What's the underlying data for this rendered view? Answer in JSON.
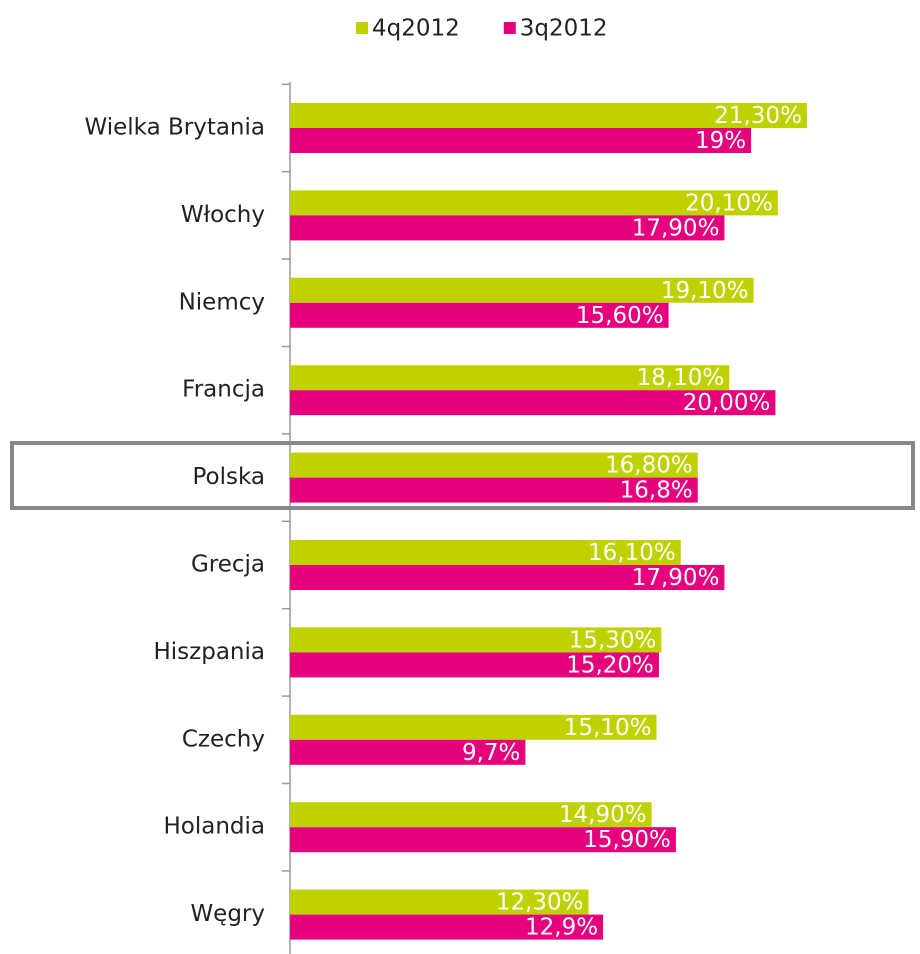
{
  "chart_data": {
    "type": "hbar",
    "categories": [
      "Wielka Brytania",
      "Włochy",
      "Niemcy",
      "Francja",
      "Polska",
      "Grecja",
      "Hiszpania",
      "Czechy",
      "Holandia",
      "Węgry"
    ],
    "series": [
      {
        "name": "4q2012",
        "color": "#bfd200",
        "values": [
          21.3,
          20.1,
          19.1,
          18.1,
          16.8,
          16.1,
          15.3,
          15.1,
          14.9,
          12.3
        ],
        "value_labels": [
          "21,30%",
          "20,10%",
          "19,10%",
          "18,10%",
          "16,80%",
          "16,10%",
          "15,30%",
          "15,10%",
          "14,90%",
          "12,30%"
        ]
      },
      {
        "name": "3q2012",
        "color": "#e6007e",
        "values": [
          19,
          17.9,
          15.6,
          20.0,
          16.8,
          17.9,
          15.2,
          9.7,
          15.9,
          12.9
        ],
        "value_labels": [
          "19%",
          "17,90%",
          "15,60%",
          "20,00%",
          "16,8%",
          "17,90%",
          "15,20%",
          "9,7%",
          "15,90%",
          "12,9%"
        ]
      }
    ],
    "legend": "top"
  }
}
